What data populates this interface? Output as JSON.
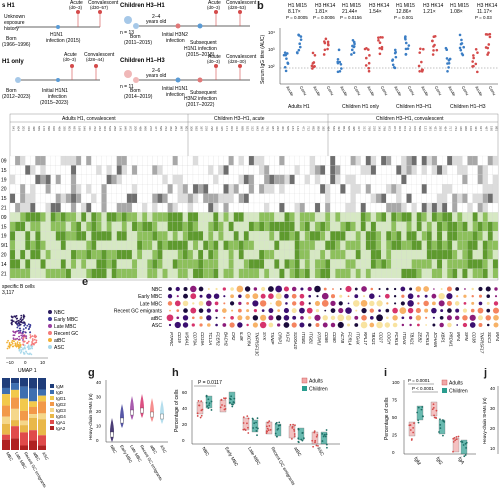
{
  "panel_a": {
    "cohort1": {
      "title": "s H1",
      "unknown": "Unknown",
      "exposure": "exposure",
      "history": "history",
      "born": "Born",
      "born_years": "(1966–1996)",
      "infection": "H1N1",
      "infection2": "infection (2015)",
      "acute": "Acute",
      "acute_days": "(d0–3)",
      "conv": "Convalescent",
      "conv_days": "(d30–57)"
    },
    "cohort2": {
      "title": "H1 only",
      "acute": "Acute",
      "acute_days": "(d0–3)",
      "conv": "Convalescent",
      "conv_days": "(d28–44)",
      "born": "Born",
      "born_years": "(2012–2023)",
      "infection": "Initial H1N1",
      "infection2": "infection",
      "infection3": "(2015–2023)"
    },
    "cohort3": {
      "title": "Children H3–H1",
      "n": "n = 13",
      "gap": "2–4",
      "gap2": "years old",
      "born": "Born",
      "born_years": "(2011–2015)",
      "initial": "Initial H3N2",
      "initial2": "infection",
      "acute": "Acute",
      "acute_days": "(d0–3)",
      "conv": "Convalescent",
      "conv_days": "(d28–53)",
      "subsequent": "Subsequent",
      "subsequent2": "H1N1 infection",
      "subsequent3": "(2015–2018)"
    },
    "cohort4": {
      "title": "Children H1–H3",
      "n": "n = 11",
      "gap": "2–6",
      "gap2": "years old",
      "born": "Born",
      "born_years": "(2014–2019)",
      "initial": "Initial H1N1",
      "initial2": "infection",
      "acute": "Acute",
      "acute_days": "(d0–3)",
      "conv": "Convalescent",
      "conv_days": "(d28–30)",
      "subsequent": "Subsequent",
      "subsequent2": "H3N2 infection",
      "subsequent3": "(2017–2022)"
    }
  },
  "panel_b": {
    "letter": "b",
    "ylabel": "Serum IgG titre (AUC)",
    "columns": [
      {
        "head": "H1 MI15",
        "fold": "8.17×",
        "p": "P = 0.0005"
      },
      {
        "head": "H3 HK14",
        "fold": "1.81×",
        "p": "P = 0.0006"
      },
      {
        "head": "H1 MI15",
        "fold": "21.44×",
        "p": "P = 0.0156"
      },
      {
        "head": "H3 HK14",
        "fold": "1.54×",
        "p": ""
      },
      {
        "head": "H1 MI15",
        "fold": "12.86×",
        "p": "P = 0.001"
      },
      {
        "head": "H3 HK14",
        "fold": "1.21×",
        "p": ""
      },
      {
        "head": "H1 MI15",
        "fold": "1.08×",
        "p": ""
      },
      {
        "head": "H3 HK14",
        "fold": "11.17×",
        "p": "P = 0.03"
      }
    ],
    "yticks": [
      "10⁴",
      "10³",
      "10²"
    ],
    "xlabels": [
      "Acute",
      "Conv.",
      "Acute",
      "Conv.",
      "Acute",
      "Conv.",
      "Acute",
      "Conv.",
      "Acute",
      "Conv.",
      "Acute",
      "Conv.",
      "Acute",
      "Conv.",
      "Acute",
      "Conv."
    ],
    "groups": [
      "Adults H1",
      "Children H1 only",
      "Children H3–H1",
      "Children H1–H3"
    ]
  },
  "panel_c": {
    "headers": [
      "Adults H1, convalescent",
      "Children H3–H1, acute",
      "Children H3–H1, convalescent"
    ],
    "row_labels": [
      "09",
      "15",
      "19",
      "20",
      "15",
      "21",
      "09",
      "15",
      "19",
      "9/1",
      "20",
      "14",
      "21"
    ]
  },
  "panel_d": {
    "title": "specific B cells",
    "count": "3,117",
    "legend": [
      "NBC",
      "Early MBC",
      "Late MBC",
      "Recent GC",
      "atBC",
      "ASC"
    ],
    "xlabel": "UMAP 1",
    "xticks": [
      "−10",
      "0",
      "10"
    ]
  },
  "panel_e": {
    "letter": "e",
    "rows": [
      "NBC",
      "Early MBC",
      "Late MBC",
      "Recent GC emigrants",
      "atBC",
      "ASC"
    ],
    "genes": [
      "PTPRC",
      "CD19",
      "MS4A1",
      "CD79A",
      "CD19A",
      "TCL1A",
      "FCER2",
      "BACH2",
      "CR2",
      "IL4R",
      "CXCR4",
      "TNFRSF13C",
      "SYK",
      "TXNIP",
      "CRIP1",
      "KLF2",
      "S100A10",
      "ITGB1",
      "ITGB1",
      "PTPRJ",
      "CD86",
      "CD80",
      "ACTB",
      "FCRL4",
      "ITGAX",
      "RPL17",
      "TBX21",
      "CD27",
      "COCH",
      "FCRL5",
      "ITGAX",
      "TBX21",
      "ZEB2",
      "FCRL5",
      "JCHAIN",
      "XBP1",
      "PRDM1",
      "IRF4",
      "SPN",
      "CD38",
      "TNFRSF17",
      "SDC1",
      "IRF4"
    ]
  },
  "panel_f": {
    "legend": [
      "IgM",
      "IgD",
      "IgG1",
      "IgG2",
      "IgG3",
      "IgG4",
      "IgA1",
      "IgA2"
    ],
    "xlabels": [
      "MBC",
      "Late MBC",
      "Recent GC emigrants",
      "atBC",
      "ASC"
    ]
  },
  "panel_g": {
    "letter": "g",
    "ylabel": "Heavy-chain SHMs (nt)",
    "yticks": [
      "40",
      "30",
      "20",
      "10",
      "0"
    ],
    "xlabels": [
      "NBC",
      "Early MBC",
      "Late MBC",
      "Recent GC emigrants",
      "atBC",
      "ASC"
    ]
  },
  "panel_h": {
    "letter": "h",
    "p": "P = 0.0117",
    "ylabel": "Percentage of cells",
    "yticks": [
      "60",
      "40",
      "20",
      "0"
    ],
    "legend": [
      "Adults",
      "Children"
    ],
    "xlabels": [
      "NBC",
      "Early MBC",
      "Late MBC",
      "Recent GC emigrants",
      "atBC",
      "ASC"
    ]
  },
  "panel_i": {
    "letter": "i",
    "p1": "P = 0.0001",
    "p2": "P < 0.0001",
    "ylabel": "Percentage of cells",
    "yticks": [
      "100",
      "75",
      "50",
      "25",
      "0"
    ],
    "legend": [
      "Adults",
      "Children"
    ],
    "xlabels": [
      "IgM",
      "IgG",
      "IgA"
    ]
  },
  "panel_j": {
    "letter": "j",
    "ylabel": "Heavy-chain SHMs (nt)",
    "yticks": [
      "40",
      "30",
      "20",
      "10"
    ]
  },
  "colors": {
    "blue": "#3a7dc4",
    "red": "#d44a4a",
    "green": "#6aaa35",
    "pink": "#f0a8a8",
    "teal": "#2a9d8f",
    "purple": "#4b1e6e"
  }
}
